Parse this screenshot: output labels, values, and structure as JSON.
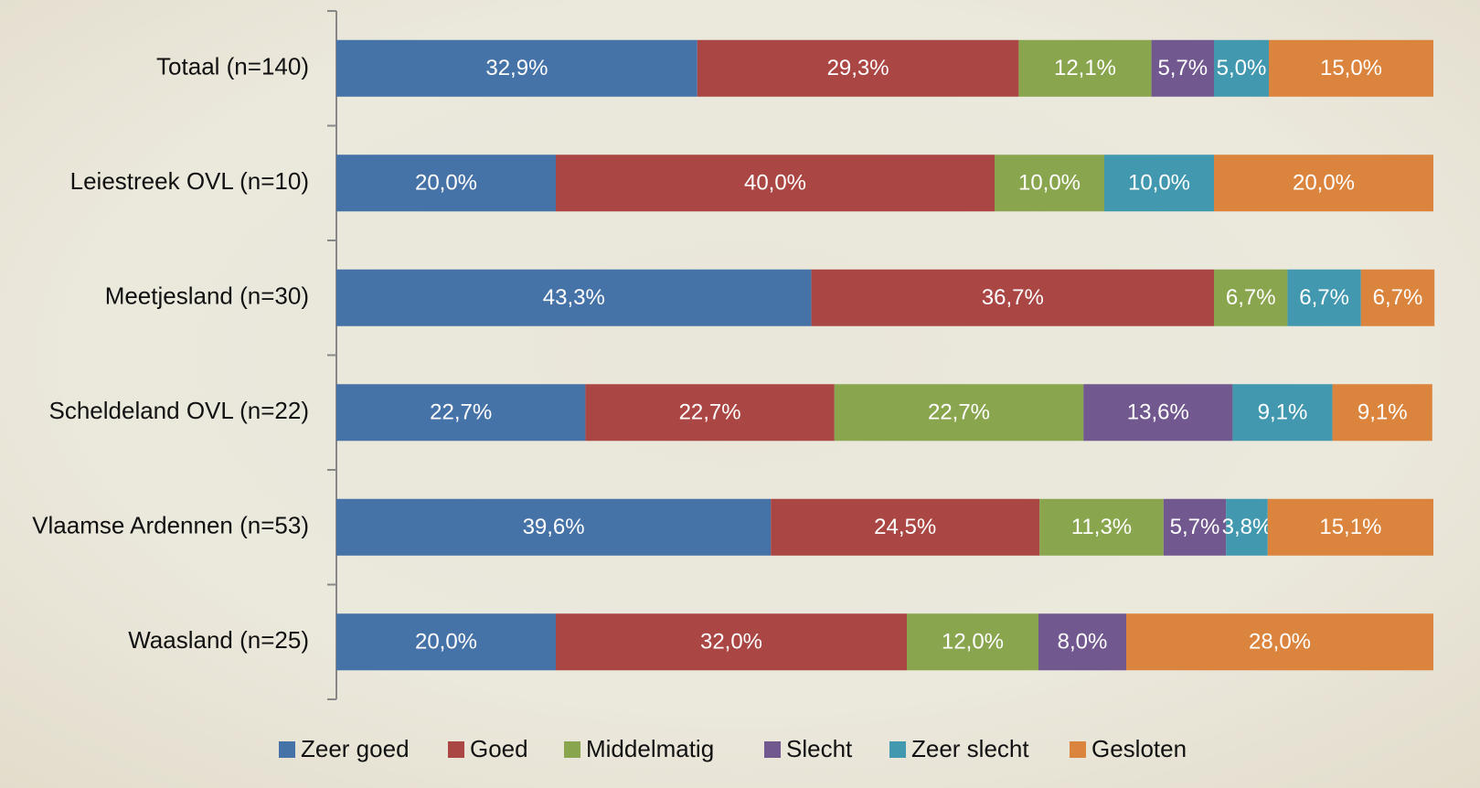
{
  "chart_data": {
    "type": "stacked-bar-horizontal",
    "categories": [
      "Totaal (n=140)",
      "Leiestreek OVL (n=10)",
      "Meetjesland (n=30)",
      "Scheldeland OVL (n=22)",
      "Vlaamse Ardennen (n=53)",
      "Waasland (n=25)"
    ],
    "xlim": [
      0,
      100
    ],
    "series": [
      {
        "name": "Zeer goed",
        "color": "#4572a7",
        "values": [
          32.9,
          20.0,
          43.3,
          22.7,
          39.6,
          20.0
        ],
        "value_labels": [
          "32,9%",
          "20,0%",
          "43,3%",
          "22,7%",
          "39,6%",
          "20,0%"
        ]
      },
      {
        "name": "Goed",
        "color": "#aa4643",
        "values": [
          29.3,
          40.0,
          36.7,
          22.7,
          24.5,
          32.0
        ],
        "value_labels": [
          "29,3%",
          "40,0%",
          "36,7%",
          "22,7%",
          "24,5%",
          "32,0%"
        ]
      },
      {
        "name": "Middelmatig",
        "color": "#89a54e",
        "values": [
          12.1,
          10.0,
          6.7,
          22.7,
          11.3,
          12.0
        ],
        "value_labels": [
          "12,1%",
          "10,0%",
          "6,7%",
          "22,7%",
          "11,3%",
          "12,0%"
        ]
      },
      {
        "name": "Slecht",
        "color": "#71588f",
        "values": [
          5.7,
          null,
          null,
          13.6,
          5.7,
          8.0
        ],
        "value_labels": [
          "5,7%",
          null,
          null,
          "13,6%",
          "5,7%",
          "8,0%"
        ]
      },
      {
        "name": "Zeer slecht",
        "color": "#4198af",
        "values": [
          5.0,
          10.0,
          6.7,
          9.1,
          3.8,
          null
        ],
        "value_labels": [
          "5,0%",
          "10,0%",
          "6,7%",
          "9,1%",
          "3,8%",
          null
        ]
      },
      {
        "name": "Gesloten",
        "color": "#db843d",
        "values": [
          15.0,
          20.0,
          6.7,
          9.1,
          15.1,
          28.0
        ],
        "value_labels": [
          "15,0%",
          "20,0%",
          "6,7%",
          "9,1%",
          "15,1%",
          "28,0%"
        ]
      }
    ],
    "legend": "bottom"
  }
}
